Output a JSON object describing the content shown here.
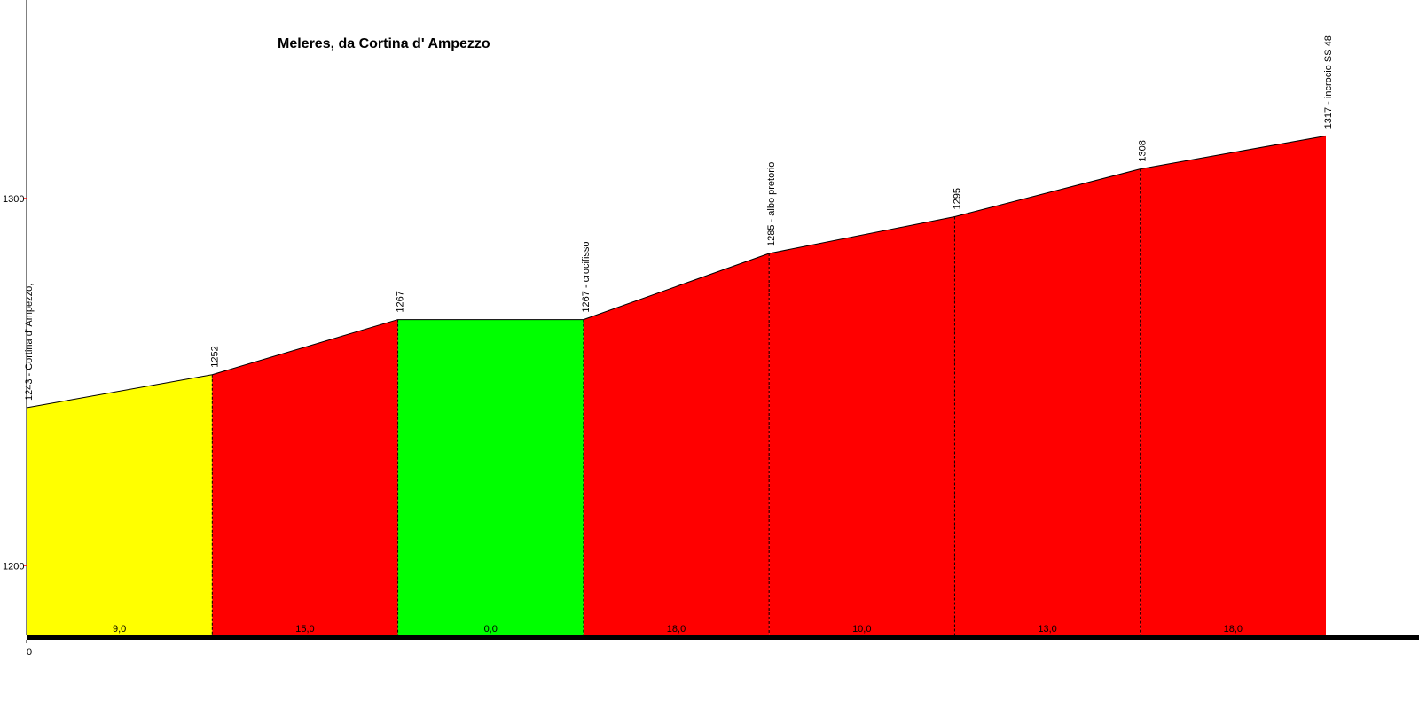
{
  "chart_data": {
    "type": "elevation-profile",
    "title": "Meleres, da Cortina d' Ampezzo",
    "values": [
      1243,
      1252,
      1267,
      1267,
      1285,
      1295,
      1308,
      1317
    ],
    "value_labels": [
      "1243 - Cortina d' Ampezzo,",
      "1252",
      "1267",
      "1267 - crocifisso",
      "1285 - albo pretorio",
      "1295",
      "1308",
      "1317 - incrocio SS 48"
    ],
    "segments": {
      "values": [
        9,
        15,
        0,
        18,
        10,
        13,
        18
      ],
      "value_labels": [
        "9,0",
        "15,0",
        "0,0",
        "18,0",
        "10,0",
        "13,0",
        "18,0"
      ],
      "colors": [
        "#ffff00",
        "#ff0000",
        "#00ff00",
        "#ff0000",
        "#ff0000",
        "#ff0000",
        "#ff0000"
      ]
    },
    "ylim": [
      1181,
      1354
    ],
    "yticks": [
      1200,
      1300
    ],
    "xticks": [
      0
    ],
    "line_color": "#000000",
    "tick_color": "#ff0000"
  }
}
